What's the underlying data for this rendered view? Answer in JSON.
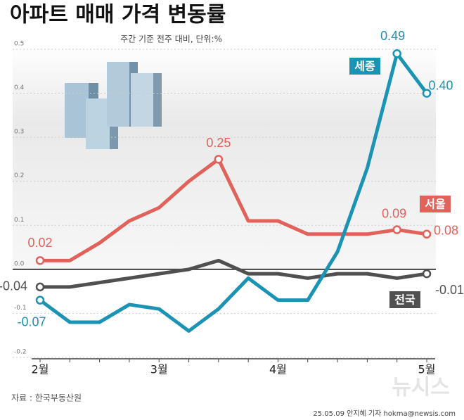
{
  "chart_data": {
    "type": "line",
    "title": "아파트 매매 가격 변동률",
    "subtitle": "주간 기준 전주 대비, 단위:%",
    "categories": [
      "2월",
      null,
      null,
      null,
      "3월",
      null,
      null,
      null,
      "4월",
      null,
      null,
      null,
      null,
      "5월"
    ],
    "ylim": [
      -0.2,
      0.5
    ],
    "yticks": [
      0.5,
      0.4,
      0.3,
      0.2,
      0.1,
      {
        "value": 0,
        "label": "0.0"
      },
      -0.1,
      -0.2
    ],
    "grid": true,
    "series": [
      {
        "name": "전국",
        "color": "#505050",
        "values": [
          -0.04,
          -0.04,
          -0.03,
          -0.02,
          -0.01,
          0.0,
          0.02,
          -0.01,
          -0.01,
          -0.02,
          -0.01,
          -0.01,
          -0.02,
          -0.01
        ],
        "value_labels": [
          "-0.04",
          null,
          null,
          null,
          null,
          null,
          null,
          null,
          null,
          null,
          null,
          null,
          null,
          "-0.01"
        ]
      },
      {
        "name": "서울",
        "color": "#e0625a",
        "values": [
          0.02,
          0.02,
          0.06,
          0.11,
          0.14,
          0.2,
          0.25,
          0.11,
          0.11,
          0.08,
          0.08,
          0.08,
          0.09,
          0.08
        ],
        "value_labels": [
          "0.02",
          null,
          null,
          null,
          null,
          null,
          "0.25",
          null,
          null,
          null,
          null,
          null,
          "0.09",
          "0.08"
        ]
      },
      {
        "name": "세종",
        "color": "#1a93b5",
        "values": [
          -0.07,
          -0.12,
          -0.12,
          -0.08,
          -0.09,
          -0.14,
          -0.09,
          -0.02,
          -0.07,
          -0.07,
          0.04,
          0.23,
          0.49,
          0.4
        ],
        "value_labels": [
          "-0.07",
          null,
          null,
          null,
          null,
          null,
          null,
          null,
          null,
          null,
          null,
          null,
          "0.49",
          "0.40"
        ]
      }
    ],
    "source": "자료 : 한국부동산원",
    "credit": "25.05.09 안지혜 기자 hokma@newsis.com",
    "logo": "뉴시스"
  }
}
